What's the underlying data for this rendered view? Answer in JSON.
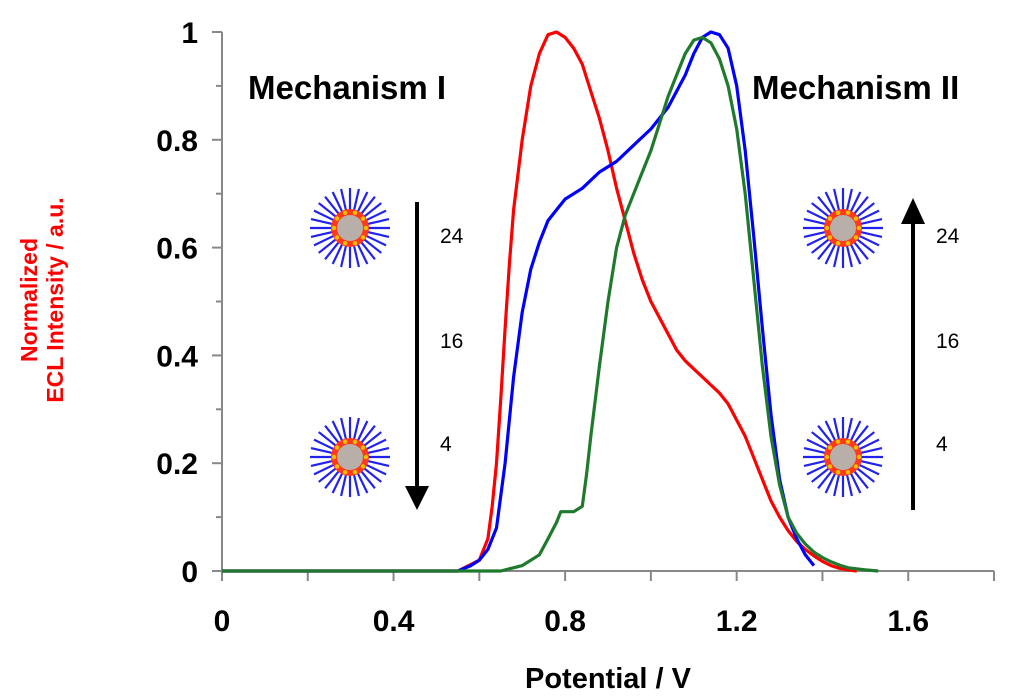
{
  "chart_data": {
    "type": "line",
    "xlabel": "Potential / V",
    "ylabel_lines": [
      "Normalized",
      "ECL Intensity / a.u."
    ],
    "xlim": [
      0,
      1.8
    ],
    "ylim": [
      0,
      1
    ],
    "xticks": [
      0,
      0.4,
      0.8,
      1.2,
      1.6
    ],
    "xtick_labels": [
      "0",
      "0.4",
      "0.8",
      "1.2",
      "1.6"
    ],
    "yticks": [
      0,
      0.2,
      0.4,
      0.6,
      0.8,
      1
    ],
    "ytick_labels": [
      "0",
      "0.2",
      "0.4",
      "0.6",
      "0.8",
      "1"
    ],
    "grid": false,
    "series": [
      {
        "color": "#ff0000",
        "x": [
          0.0,
          0.55,
          0.6,
          0.62,
          0.63,
          0.64,
          0.65,
          0.66,
          0.67,
          0.68,
          0.7,
          0.72,
          0.74,
          0.76,
          0.78,
          0.8,
          0.82,
          0.84,
          0.86,
          0.88,
          0.9,
          0.92,
          0.94,
          0.96,
          0.98,
          1.0,
          1.02,
          1.04,
          1.06,
          1.08,
          1.1,
          1.12,
          1.14,
          1.16,
          1.18,
          1.2,
          1.22,
          1.24,
          1.26,
          1.28,
          1.3,
          1.32,
          1.34,
          1.36,
          1.38,
          1.4,
          1.42,
          1.44,
          1.46,
          1.48
        ],
        "y": [
          0.0,
          0.0,
          0.02,
          0.06,
          0.12,
          0.2,
          0.32,
          0.45,
          0.57,
          0.67,
          0.8,
          0.9,
          0.96,
          0.995,
          1.0,
          0.99,
          0.97,
          0.94,
          0.89,
          0.84,
          0.78,
          0.71,
          0.65,
          0.59,
          0.54,
          0.5,
          0.47,
          0.44,
          0.41,
          0.39,
          0.375,
          0.36,
          0.345,
          0.33,
          0.31,
          0.28,
          0.25,
          0.21,
          0.17,
          0.13,
          0.1,
          0.075,
          0.055,
          0.04,
          0.028,
          0.018,
          0.01,
          0.005,
          0.002,
          0.0
        ]
      },
      {
        "color": "#0000ff",
        "x": [
          0.0,
          0.55,
          0.58,
          0.6,
          0.62,
          0.64,
          0.66,
          0.68,
          0.7,
          0.72,
          0.74,
          0.76,
          0.78,
          0.8,
          0.84,
          0.88,
          0.92,
          0.96,
          1.0,
          1.04,
          1.08,
          1.1,
          1.12,
          1.14,
          1.16,
          1.18,
          1.2,
          1.22,
          1.24,
          1.26,
          1.28,
          1.3,
          1.32,
          1.34,
          1.36,
          1.38
        ],
        "y": [
          0.0,
          0.0,
          0.01,
          0.02,
          0.04,
          0.08,
          0.2,
          0.36,
          0.48,
          0.56,
          0.61,
          0.65,
          0.67,
          0.69,
          0.71,
          0.74,
          0.76,
          0.79,
          0.82,
          0.86,
          0.92,
          0.96,
          0.99,
          1.0,
          0.995,
          0.97,
          0.9,
          0.78,
          0.62,
          0.45,
          0.29,
          0.17,
          0.1,
          0.06,
          0.03,
          0.01
        ]
      },
      {
        "color": "#1f7a2e",
        "x": [
          0.0,
          0.65,
          0.7,
          0.74,
          0.76,
          0.78,
          0.79,
          0.8,
          0.82,
          0.84,
          0.85,
          0.86,
          0.88,
          0.9,
          0.92,
          0.94,
          0.96,
          0.98,
          1.0,
          1.02,
          1.04,
          1.06,
          1.08,
          1.1,
          1.12,
          1.14,
          1.16,
          1.18,
          1.2,
          1.22,
          1.24,
          1.26,
          1.28,
          1.3,
          1.32,
          1.34,
          1.36,
          1.38,
          1.4,
          1.42,
          1.44,
          1.46,
          1.5,
          1.53
        ],
        "y": [
          0.0,
          0.0,
          0.01,
          0.03,
          0.06,
          0.09,
          0.11,
          0.11,
          0.11,
          0.12,
          0.18,
          0.25,
          0.38,
          0.5,
          0.6,
          0.66,
          0.7,
          0.74,
          0.78,
          0.83,
          0.88,
          0.92,
          0.96,
          0.985,
          0.99,
          0.98,
          0.95,
          0.9,
          0.82,
          0.7,
          0.54,
          0.38,
          0.25,
          0.16,
          0.1,
          0.07,
          0.05,
          0.035,
          0.025,
          0.017,
          0.011,
          0.006,
          0.002,
          0.0
        ]
      }
    ],
    "annotations": [
      {
        "text": "Mechanism I"
      },
      {
        "text": "Mechanism II"
      },
      {
        "text": "24"
      },
      {
        "text": "16"
      },
      {
        "text": "4"
      },
      {
        "text": "24"
      },
      {
        "text": "16"
      },
      {
        "text": "4"
      }
    ]
  }
}
